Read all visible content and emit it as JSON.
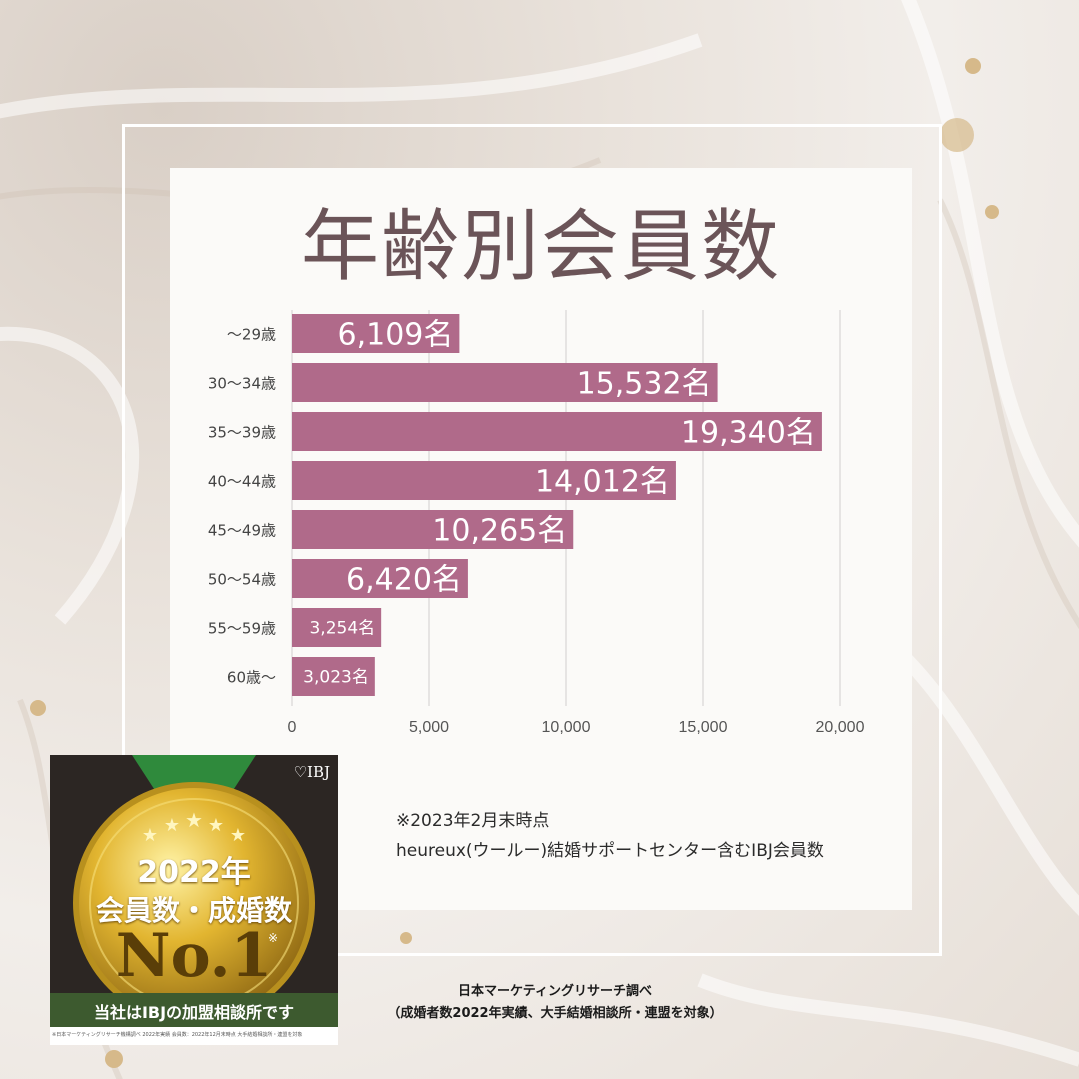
{
  "chart_data": {
    "type": "bar",
    "orientation": "horizontal",
    "title": "年齢別会員数",
    "categories": [
      "～29歳",
      "30～34歳",
      "35～39歳",
      "40～44歳",
      "45～49歳",
      "50～54歳",
      "55～59歳",
      "60歳～"
    ],
    "values": [
      6109,
      15532,
      19340,
      14012,
      10265,
      6420,
      3254,
      3023
    ],
    "data_labels": [
      "6,109名",
      "15,532名",
      "19,340名",
      "14,012名",
      "10,265名",
      "6,420名",
      "3,254名",
      "3,023名"
    ],
    "xticks": [
      "0",
      "5,000",
      "10,000",
      "15,000",
      "20,000"
    ],
    "xlim": [
      0,
      20000
    ],
    "grid": true,
    "bar_color": "#b06a8a"
  },
  "notes": {
    "date": "※2023年2月末時点",
    "scope": "heureux(ウールー)結婚サポートセンター含むIBJ会員数"
  },
  "badge": {
    "brand": "♡IBJ",
    "year": "2022年",
    "headline": "会員数・成婚数",
    "rank": "No.1",
    "asterisk": "※",
    "footer": "当社はIBJの加盟相談所です",
    "fine_print": "※日本マーケティングリサーチ機構調べ 2022年実績 会員数：2022年12月末時点 大手結婚相談所・連盟を対象"
  },
  "source": {
    "line1": "日本マーケティングリサーチ調べ",
    "line2": "（成婚者数2022年実績、大手結婚相談所・連盟を対象）"
  }
}
